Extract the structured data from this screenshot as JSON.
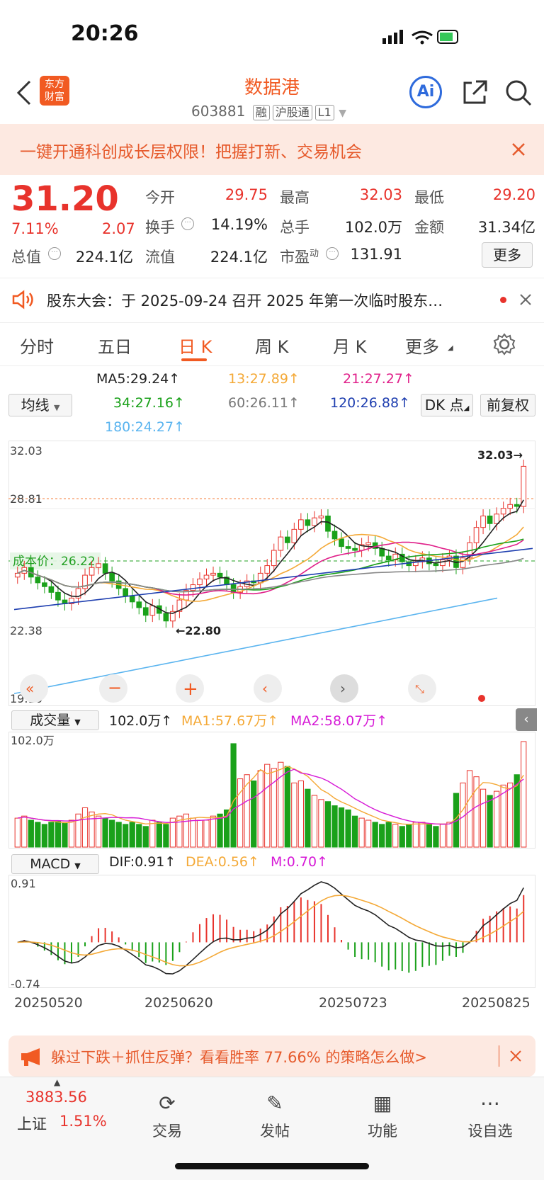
{
  "status": {
    "time": "20:26"
  },
  "header": {
    "title": "数据港",
    "code": "603881",
    "tags": [
      "融",
      "沪股通",
      "L1"
    ],
    "ai_label": "Ai",
    "logo_line1": "东方",
    "logo_line2": "财富"
  },
  "banner": {
    "text": "一键开通科创成长层权限！把握打新、交易机会"
  },
  "quote": {
    "price": "31.20",
    "change_pct": "7.11%",
    "change_amt": "2.07",
    "open_label": "今开",
    "open": "29.75",
    "high_label": "最高",
    "high": "32.03",
    "low_label": "最低",
    "low": "29.20",
    "turnover_label": "换手",
    "turnover": "14.19%",
    "vol_label": "总手",
    "vol": "102.0万",
    "amount_label": "金额",
    "amount": "31.34亿",
    "mktcap_label": "总值",
    "mktcap": "224.1亿",
    "float_label": "流值",
    "float": "224.1亿",
    "pe_label": "市盈",
    "pe_sup": "动",
    "pe": "131.91",
    "more": "更多"
  },
  "notice": {
    "text": "股东大会：于 2025-09-24 召开 2025 年第一次临时股东…"
  },
  "tabs": [
    "分时",
    "五日",
    "日 K",
    "周 K",
    "月 K",
    "更多"
  ],
  "ma": {
    "selector": "均线",
    "ma5": "MA5:29.24",
    "ma13": "13:27.89",
    "ma21": "21:27.27",
    "ma34": "34:27.16",
    "ma60": "60:26.11",
    "ma120": "120:26.88",
    "ma180": "180:24.27",
    "dk": "DK 点",
    "fq": "前复权"
  },
  "chart_data": {
    "type": "candlestick",
    "price_axis": {
      "max": "32.03",
      "mid": "28.81",
      "low": "22.38",
      "min": "19.16"
    },
    "annotations": {
      "high": "32.03→",
      "low": "←22.80",
      "cost_label": "成本价：26.22"
    },
    "x_labels": [
      "20250520",
      "20250620",
      "20250723",
      "20250825"
    ],
    "closes": [
      25.6,
      25.9,
      25.4,
      25.1,
      24.9,
      24.6,
      24.2,
      24.0,
      24.3,
      24.8,
      25.5,
      25.9,
      26.1,
      25.6,
      25.2,
      24.8,
      24.4,
      24.1,
      23.8,
      23.4,
      23.9,
      23.5,
      23.1,
      23.6,
      24.2,
      24.7,
      25.0,
      25.3,
      25.5,
      25.6,
      25.4,
      25.0,
      24.6,
      24.9,
      25.2,
      25.1,
      25.6,
      26.0,
      26.8,
      27.5,
      27.2,
      27.9,
      28.4,
      28.1,
      28.5,
      28.6,
      27.8,
      27.4,
      27.0,
      26.9,
      26.8,
      27.1,
      27.2,
      26.9,
      26.5,
      26.3,
      26.6,
      26.2,
      26.0,
      26.2,
      26.4,
      26.1,
      26.0,
      26.3,
      26.5,
      25.9,
      26.4,
      27.2,
      28.0,
      28.6,
      28.2,
      28.7,
      29.0,
      29.2,
      29.1,
      31.2
    ],
    "volume_axis_max": "102.0万",
    "volume_header": {
      "selector": "成交量",
      "vol": "102.0万",
      "ma1": "MA1:57.67万",
      "ma2": "MA2:58.07万"
    },
    "volumes": [
      28,
      30,
      26,
      24,
      22,
      24,
      25,
      23,
      26,
      32,
      38,
      34,
      30,
      28,
      26,
      24,
      22,
      24,
      22,
      20,
      26,
      24,
      22,
      28,
      30,
      32,
      28,
      26,
      26,
      30,
      32,
      36,
      100,
      66,
      70,
      64,
      74,
      80,
      76,
      82,
      78,
      62,
      64,
      56,
      50,
      46,
      44,
      40,
      38,
      36,
      30,
      28,
      26,
      24,
      22,
      24,
      22,
      20,
      22,
      24,
      24,
      22,
      20,
      22,
      24,
      52,
      62,
      74,
      68,
      56,
      50,
      54,
      60,
      62,
      70,
      102
    ],
    "macd_header": {
      "selector": "MACD",
      "dif": "DIF:0.91",
      "dea": "DEA:0.56",
      "m": "M:0.70"
    },
    "macd_axis": {
      "max": "0.91",
      "min": "-0.74"
    }
  },
  "promo": {
    "text": "躲过下跌＋抓住反弹？看看胜率 77.66% 的策略怎么做>"
  },
  "nav": {
    "index_value": "3883.56",
    "index_name": "上证",
    "index_change": "1.51%",
    "trade": "交易",
    "post": "发帖",
    "func": "功能",
    "watch": "设自选"
  }
}
